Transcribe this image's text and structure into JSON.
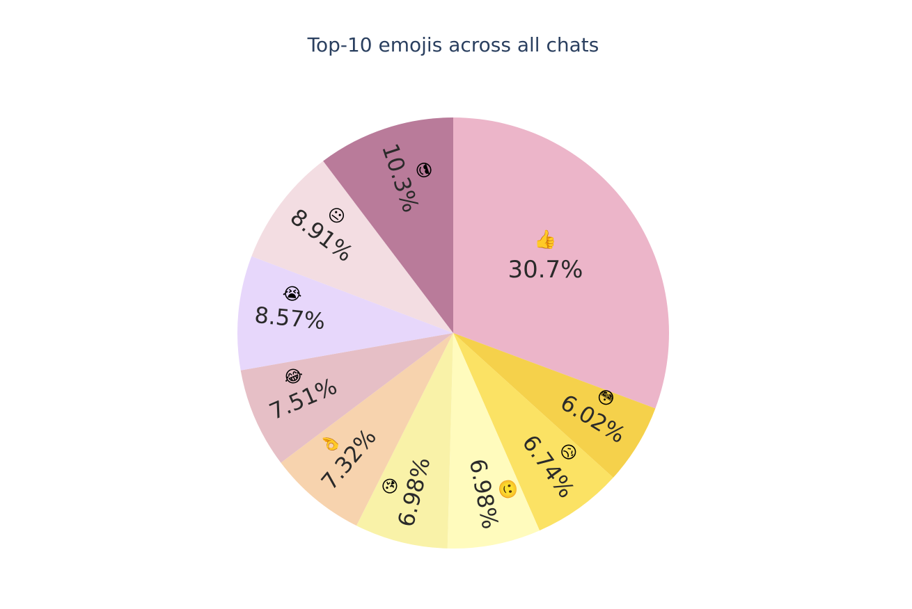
{
  "title": "Top-10 emojis across all chats",
  "chart_data": {
    "type": "pie",
    "title": "Top-10 emojis across all chats",
    "direction": "clockwise-from-top (as rendered)",
    "labels": [
      "👍",
      "😳",
      "😥",
      "🙂",
      "😘",
      "👌",
      "😂",
      "😭",
      "😐",
      "😎"
    ],
    "label_names": [
      "thumbs-up",
      "flushed-face",
      "sad-but-relieved-face",
      "slightly-smiling-face",
      "face-blowing-kiss",
      "ok-hand",
      "face-with-tears-of-joy",
      "loudly-crying-face",
      "neutral-face",
      "smiling-face-with-sunglasses"
    ],
    "values": [
      30.7,
      6.02,
      6.74,
      6.98,
      6.98,
      7.32,
      7.51,
      8.57,
      8.91,
      10.3
    ],
    "percent_text": [
      "30.7%",
      "6.02%",
      "6.74%",
      "6.98%",
      "6.98%",
      "7.32%",
      "7.51%",
      "8.57%",
      "8.91%",
      "10.3%"
    ],
    "colors": [
      "#ecb5c9",
      "#f5d14b",
      "#fbe264",
      "#fffbbd",
      "#f9f2a8",
      "#f7d3ae",
      "#e6bfc6",
      "#e7d7fb",
      "#f3dde2",
      "#b97b9a"
    ],
    "textinfo": "label+percent",
    "legend": "none"
  }
}
